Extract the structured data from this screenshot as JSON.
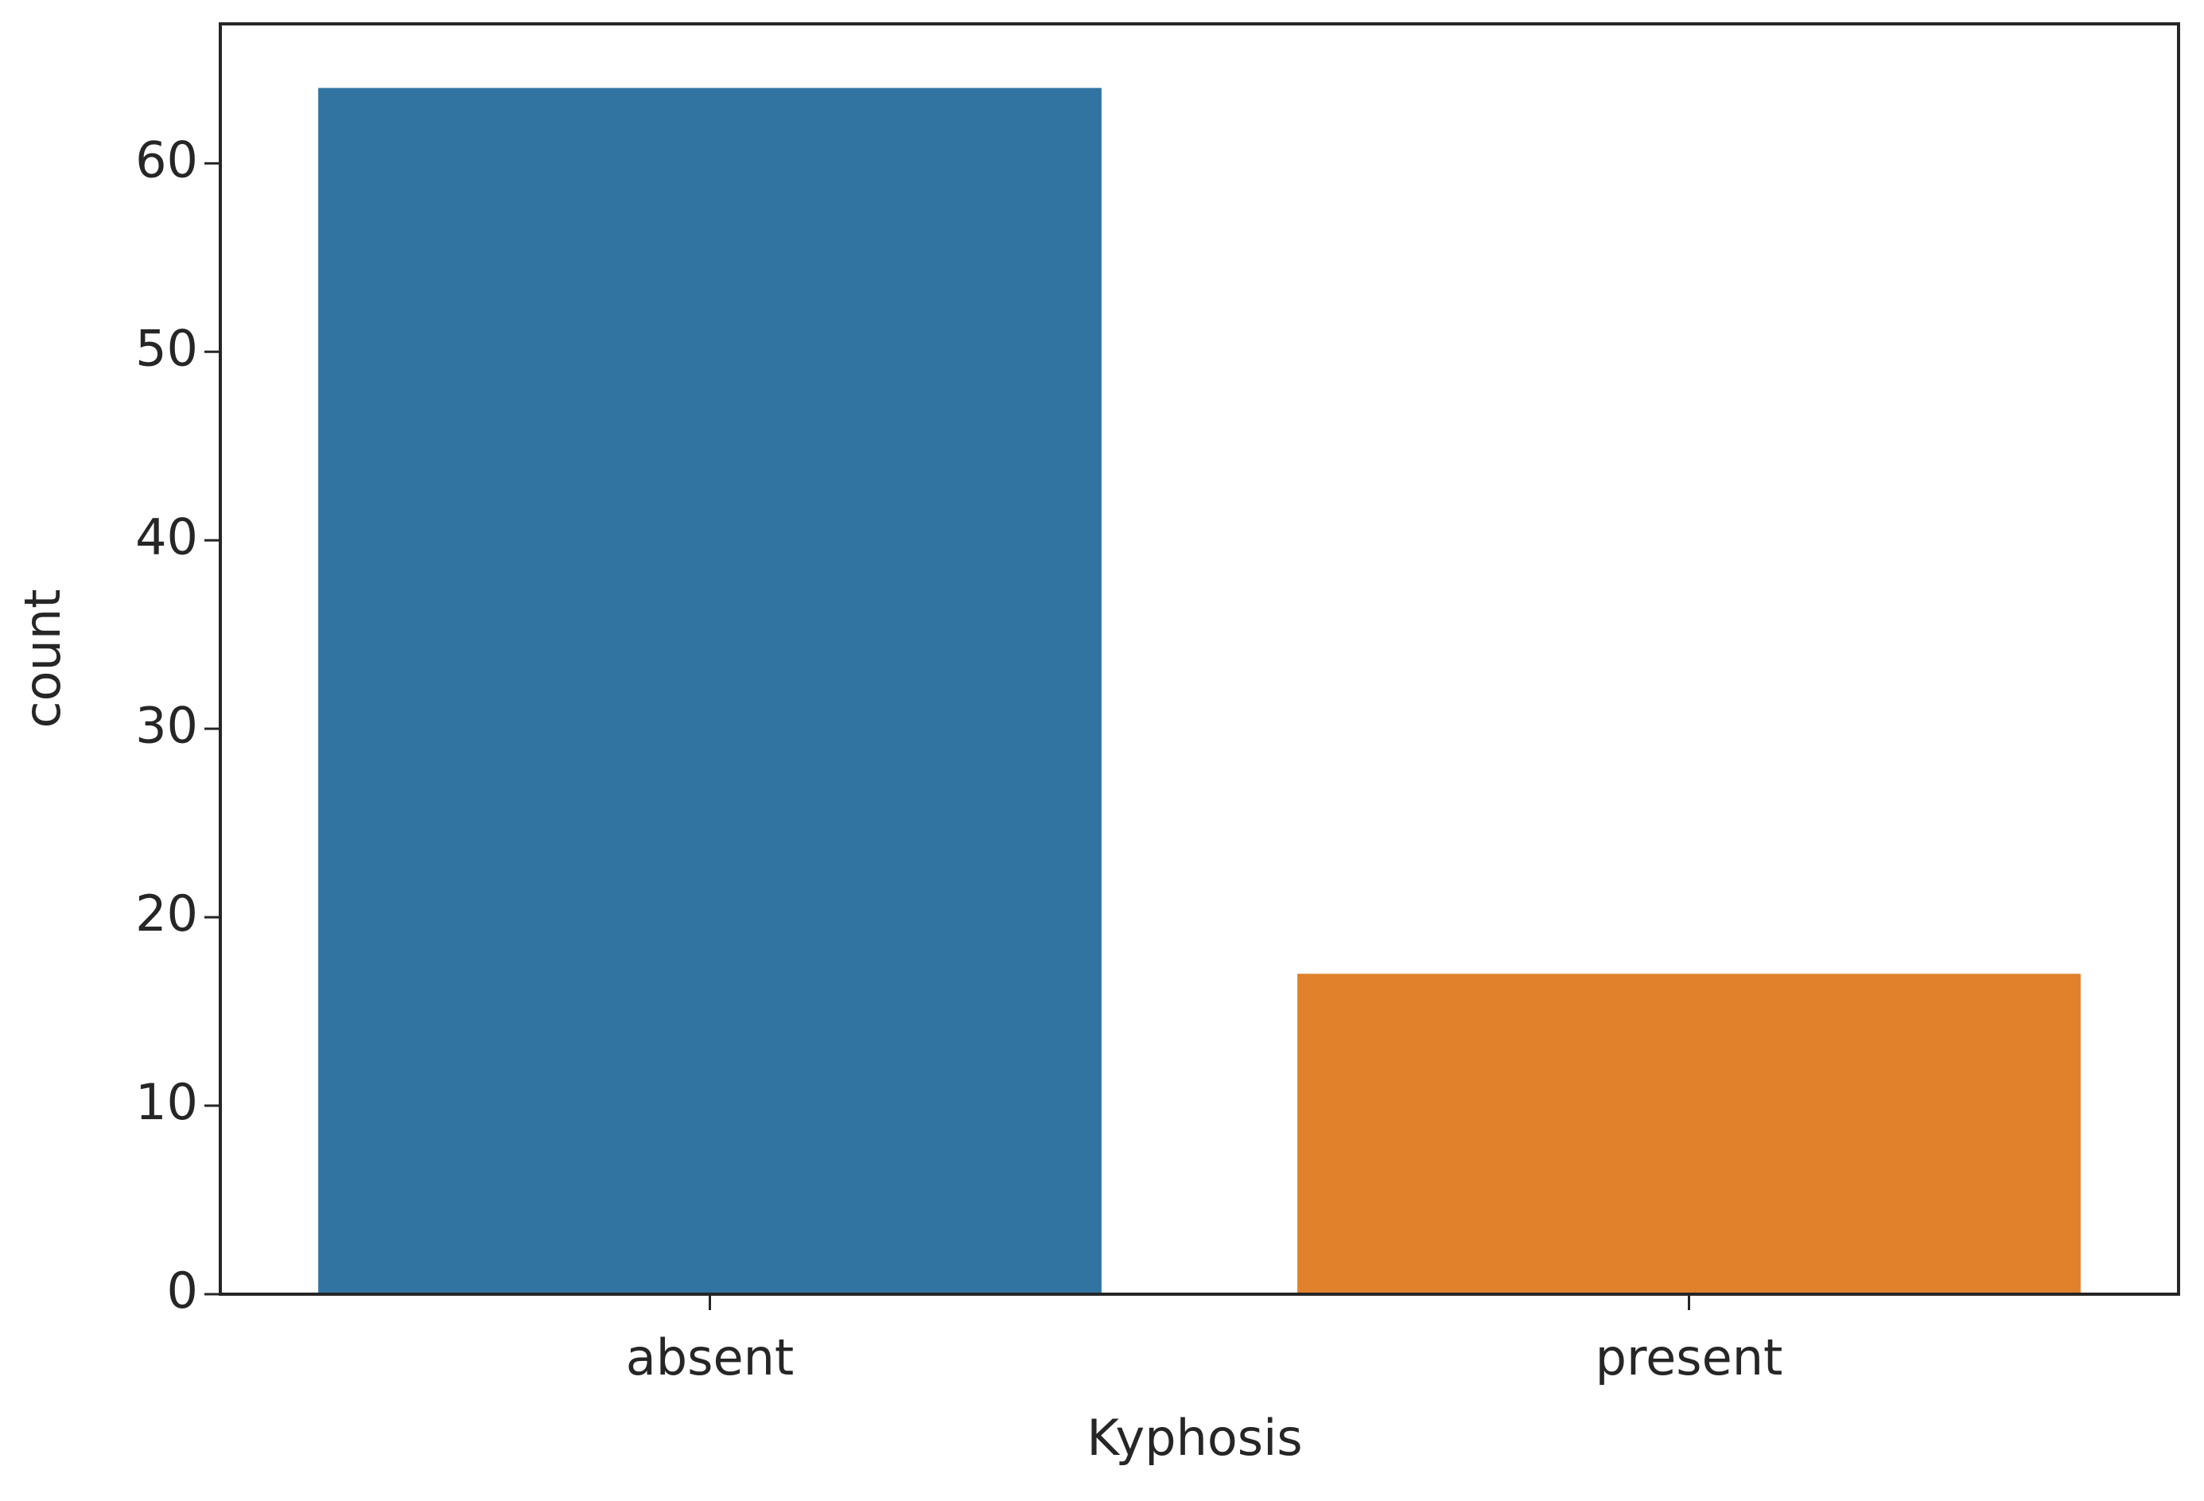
{
  "chart_data": {
    "type": "bar",
    "x_label": "Kyphosis",
    "y_label": "count",
    "categories": [
      "absent",
      "present"
    ],
    "values": [
      64,
      17
    ],
    "colors": [
      "#3274a1",
      "#e1812c"
    ],
    "ylim": [
      0,
      67.4
    ],
    "yticks": [
      0,
      10,
      20,
      30,
      40,
      50,
      60
    ],
    "grid": false
  }
}
